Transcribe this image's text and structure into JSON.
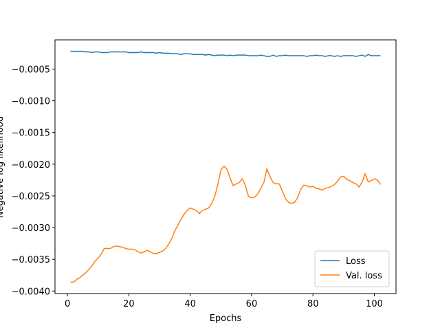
{
  "chart_data": {
    "type": "line",
    "xlabel": "Epochs",
    "ylabel": "Negative log likelihood",
    "x": [
      1,
      2,
      3,
      4,
      5,
      6,
      7,
      8,
      9,
      10,
      11,
      12,
      13,
      14,
      15,
      16,
      17,
      18,
      19,
      20,
      21,
      22,
      23,
      24,
      25,
      26,
      27,
      28,
      29,
      30,
      31,
      32,
      33,
      34,
      35,
      36,
      37,
      38,
      39,
      40,
      41,
      42,
      43,
      44,
      45,
      46,
      47,
      48,
      49,
      50,
      51,
      52,
      53,
      54,
      55,
      56,
      57,
      58,
      59,
      60,
      61,
      62,
      63,
      64,
      65,
      66,
      67,
      68,
      69,
      70,
      71,
      72,
      73,
      74,
      75,
      76,
      77,
      78,
      79,
      80,
      81,
      82,
      83,
      84,
      85,
      86,
      87,
      88,
      89,
      90,
      91,
      92,
      93,
      94,
      95,
      96,
      97,
      98,
      99,
      100,
      101,
      102
    ],
    "series": [
      {
        "name": "Loss",
        "color": "#1f77b4",
        "values": [
          -0.00022,
          -0.00022,
          -0.00022,
          -0.00022,
          -0.00022,
          -0.00023,
          -0.00023,
          -0.00024,
          -0.00023,
          -0.00023,
          -0.00024,
          -0.00024,
          -0.00024,
          -0.00023,
          -0.00023,
          -0.00023,
          -0.00023,
          -0.00023,
          -0.00023,
          -0.00024,
          -0.00024,
          -0.00024,
          -0.00024,
          -0.00023,
          -0.00024,
          -0.00024,
          -0.00024,
          -0.00024,
          -0.00025,
          -0.00024,
          -0.00025,
          -0.00025,
          -0.00025,
          -0.00026,
          -0.00026,
          -0.00026,
          -0.00027,
          -0.00026,
          -0.00026,
          -0.00026,
          -0.00027,
          -0.00027,
          -0.00027,
          -0.00027,
          -0.00028,
          -0.00027,
          -0.00028,
          -0.00029,
          -0.00028,
          -0.00028,
          -0.00028,
          -0.00029,
          -0.00028,
          -0.00029,
          -0.00028,
          -0.00028,
          -0.00028,
          -0.00028,
          -0.00029,
          -0.00029,
          -0.00029,
          -0.00029,
          -0.00028,
          -0.00029,
          -0.0003,
          -0.0003,
          -0.00028,
          -0.0003,
          -0.00029,
          -0.00029,
          -0.00028,
          -0.00029,
          -0.00029,
          -0.00029,
          -0.00029,
          -0.00029,
          -0.00029,
          -0.0003,
          -0.00029,
          -0.00029,
          -0.00028,
          -0.00029,
          -0.00029,
          -0.0003,
          -0.00029,
          -0.00029,
          -0.0003,
          -0.00029,
          -0.0003,
          -0.00029,
          -0.00029,
          -0.00029,
          -0.00029,
          -0.0003,
          -0.00029,
          -0.00028,
          -0.0003,
          -0.00027,
          -0.00029,
          -0.00029,
          -0.00029,
          -0.00029
        ]
      },
      {
        "name": "Val. loss",
        "color": "#ff7f0e",
        "values": [
          -0.00386,
          -0.00386,
          -0.00382,
          -0.00379,
          -0.00375,
          -0.00371,
          -0.00366,
          -0.0036,
          -0.00353,
          -0.00348,
          -0.00342,
          -0.00333,
          -0.00333,
          -0.00333,
          -0.0033,
          -0.00329,
          -0.0033,
          -0.00331,
          -0.00333,
          -0.00334,
          -0.00334,
          -0.00335,
          -0.00338,
          -0.0034,
          -0.00338,
          -0.00336,
          -0.00338,
          -0.00341,
          -0.00341,
          -0.00339,
          -0.00337,
          -0.00333,
          -0.00326,
          -0.00317,
          -0.00305,
          -0.00296,
          -0.00287,
          -0.00279,
          -0.00273,
          -0.00269,
          -0.00271,
          -0.00273,
          -0.00278,
          -0.00273,
          -0.00271,
          -0.00269,
          -0.00262,
          -0.00251,
          -0.00232,
          -0.00209,
          -0.00203,
          -0.00208,
          -0.00222,
          -0.00234,
          -0.00231,
          -0.00229,
          -0.00223,
          -0.00234,
          -0.00251,
          -0.00253,
          -0.00252,
          -0.00247,
          -0.00238,
          -0.00229,
          -0.00207,
          -0.0022,
          -0.00229,
          -0.00231,
          -0.00231,
          -0.00242,
          -0.00254,
          -0.0026,
          -0.00262,
          -0.0026,
          -0.00253,
          -0.0024,
          -0.00233,
          -0.00234,
          -0.00236,
          -0.00235,
          -0.00238,
          -0.00239,
          -0.00241,
          -0.00238,
          -0.00237,
          -0.00235,
          -0.00232,
          -0.00227,
          -0.0022,
          -0.00219,
          -0.00224,
          -0.00226,
          -0.00229,
          -0.00231,
          -0.00236,
          -0.00228,
          -0.00215,
          -0.00228,
          -0.00226,
          -0.00223,
          -0.00225,
          -0.00232
        ]
      }
    ],
    "xlim": [
      -4.05,
      107.05
    ],
    "ylim": [
      -0.00404,
      -4e-05
    ],
    "xticks": [
      0,
      20,
      40,
      60,
      80,
      100
    ],
    "yticks": [
      {
        "value": -0.004,
        "label": "−0.0040"
      },
      {
        "value": -0.0035,
        "label": "−0.0035"
      },
      {
        "value": -0.003,
        "label": "−0.0030"
      },
      {
        "value": -0.0025,
        "label": "−0.0025"
      },
      {
        "value": -0.002,
        "label": "−0.0020"
      },
      {
        "value": -0.0015,
        "label": "−0.0015"
      },
      {
        "value": -0.001,
        "label": "−0.0010"
      },
      {
        "value": -0.0005,
        "label": "−0.0005"
      }
    ],
    "legend": "lower right",
    "grid": false
  }
}
